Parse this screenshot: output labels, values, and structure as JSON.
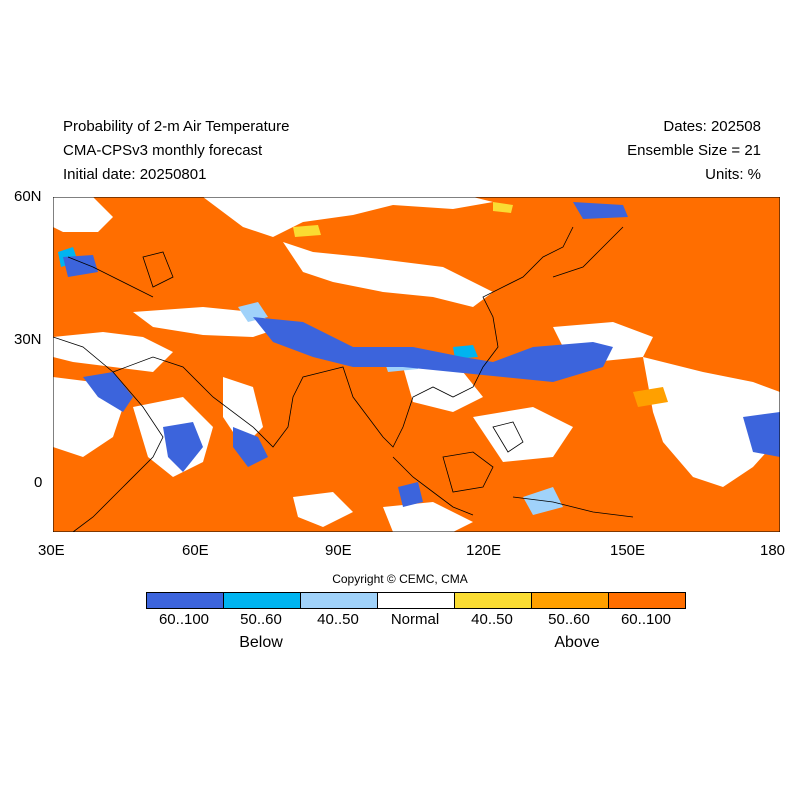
{
  "header": {
    "title_line1": "Probability of 2-m Air Temperature",
    "title_line2": "CMA-CPSv3 monthly forecast",
    "title_line3": "Initial date: 20250801",
    "dates": "Dates: 202508",
    "ensemble": "Ensemble Size = 21",
    "units": "Units: %"
  },
  "map": {
    "lat_ticks": [
      "60N",
      "30N",
      "0"
    ],
    "lon_ticks": [
      "30E",
      "60E",
      "90E",
      "120E",
      "150E",
      "180"
    ],
    "lon_range": [
      30,
      180
    ],
    "lat_range": [
      -10,
      60
    ],
    "background_color": "#ff6e00"
  },
  "legend": {
    "copyright": "Copyright © CEMC, CMA",
    "bins": [
      {
        "label": "60..100",
        "color": "#3c64dc"
      },
      {
        "label": "50..60",
        "color": "#00b4f0"
      },
      {
        "label": "40..50",
        "color": "#a0d2fa"
      },
      {
        "label": "Normal",
        "color": "#ffffff"
      },
      {
        "label": "40..50",
        "color": "#fadc32"
      },
      {
        "label": "50..60",
        "color": "#ffa000"
      },
      {
        "label": "60..100",
        "color": "#ff6e00"
      }
    ],
    "group_below": "Below",
    "group_above": "Above"
  }
}
